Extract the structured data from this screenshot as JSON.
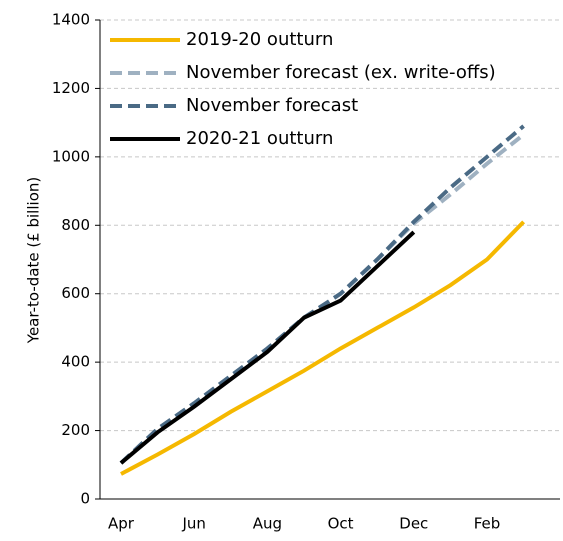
{
  "chart_data": {
    "type": "line",
    "y_label": "Year-to-date (£ billion)",
    "categories": [
      "Apr",
      null,
      "Jun",
      null,
      "Aug",
      null,
      "Oct",
      null,
      "Dec",
      null,
      "Feb",
      null
    ],
    "series": [
      {
        "name": "2019-20 outturn",
        "color": "#f5b800",
        "dashed": false,
        "values": [
          73,
          130,
          190,
          255,
          315,
          375,
          440,
          500,
          560,
          625,
          700,
          810
        ]
      },
      {
        "name": "November forecast (ex. write-offs)",
        "color": "#9fb1c1",
        "dashed": true,
        "values": [
          105,
          205,
          280,
          360,
          440,
          530,
          600,
          700,
          805,
          890,
          980,
          1065
        ]
      },
      {
        "name": "November forecast",
        "color": "#4a6a85",
        "dashed": true,
        "values": [
          105,
          205,
          280,
          360,
          440,
          530,
          600,
          700,
          810,
          910,
          1000,
          1090
        ]
      },
      {
        "name": "2020-21 outturn",
        "color": "#000000",
        "dashed": false,
        "values": [
          105,
          195,
          270,
          350,
          430,
          530,
          580,
          680,
          780,
          null,
          null,
          null
        ]
      }
    ],
    "ylim": [
      0,
      1400
    ],
    "yticks": [
      0,
      200,
      400,
      600,
      800,
      1000,
      1200,
      1400
    ],
    "grid": true,
    "legend": "upper left"
  }
}
